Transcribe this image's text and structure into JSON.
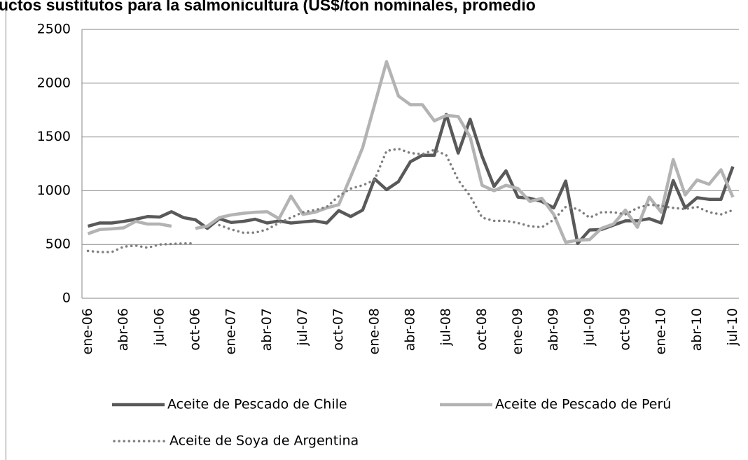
{
  "chart_data": {
    "type": "line",
    "title": "uctos sustitutos para la salmonicultura (US$/ton nominales, promedio",
    "categories": [
      "ene-06",
      null,
      null,
      "abr-06",
      null,
      null,
      "jul-06",
      null,
      null,
      "oct-06",
      null,
      null,
      "ene-07",
      null,
      null,
      "abr-07",
      null,
      null,
      "jul-07",
      null,
      null,
      "oct-07",
      null,
      null,
      "ene-08",
      null,
      null,
      "abr-08",
      null,
      null,
      "jul-08",
      null,
      null,
      "oct-08",
      null,
      null,
      "ene-09",
      null,
      null,
      "abr-09",
      null,
      null,
      "jul-09",
      null,
      null,
      "oct-09",
      null,
      null,
      "ene-10",
      null,
      null,
      "abr-10",
      null,
      null,
      "jul-10"
    ],
    "series": [
      {
        "name": "Aceite de Pescado de Chile",
        "color": "#595959",
        "style": "solid",
        "values": [
          670,
          700,
          700,
          715,
          735,
          760,
          755,
          805,
          750,
          730,
          650,
          740,
          705,
          715,
          735,
          700,
          720,
          700,
          710,
          720,
          700,
          815,
          760,
          820,
          1110,
          1010,
          1085,
          1270,
          1330,
          1330,
          1710,
          1350,
          1665,
          1320,
          1040,
          1185,
          940,
          930,
          900,
          840,
          1090,
          510,
          635,
          640,
          680,
          720,
          720,
          740,
          700,
          1095,
          840,
          935,
          920,
          920,
          1225
        ]
      },
      {
        "name": "Aceite de Pescado de Perú",
        "color": "#b3b3b3",
        "style": "solid",
        "values": [
          600,
          640,
          645,
          655,
          715,
          690,
          690,
          670,
          null,
          650,
          670,
          750,
          775,
          790,
          800,
          805,
          740,
          950,
          780,
          800,
          840,
          870,
          1130,
          1400,
          1800,
          2200,
          1880,
          1800,
          1800,
          1650,
          1700,
          1690,
          1500,
          1050,
          1000,
          1050,
          1020,
          900,
          930,
          780,
          520,
          540,
          545,
          650,
          690,
          820,
          660,
          940,
          800,
          1290,
          960,
          1100,
          1060,
          1195,
          940
        ]
      },
      {
        "name": "Aceite de Soya de Argentina",
        "color": "#7f7f7f",
        "style": "dotted",
        "values": [
          440,
          430,
          430,
          480,
          490,
          470,
          500,
          505,
          510,
          510,
          null,
          680,
          640,
          610,
          610,
          640,
          700,
          750,
          800,
          820,
          850,
          950,
          1020,
          1050,
          1100,
          1370,
          1390,
          1350,
          1340,
          1380,
          1330,
          1100,
          950,
          750,
          720,
          720,
          700,
          670,
          660,
          730,
          850,
          830,
          750,
          800,
          800,
          780,
          840,
          870,
          860,
          840,
          830,
          850,
          800,
          780,
          820
        ]
      }
    ],
    "ylim": [
      0,
      2500
    ],
    "yticks": [
      0,
      500,
      1000,
      1500,
      2000,
      2500
    ],
    "grid": true,
    "legend": "bottom"
  }
}
